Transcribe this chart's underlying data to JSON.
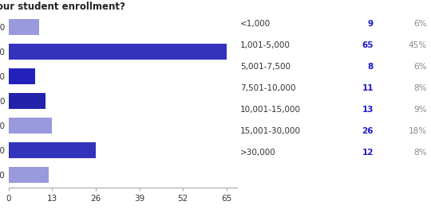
{
  "title": "How large is your student enrollment?",
  "categories": [
    "<1,000",
    "1,001-5,000",
    "5,001-7,500",
    "7,501-10,000",
    "10,001-15,000",
    "15,001-30,000",
    ">30,000"
  ],
  "values": [
    9,
    65,
    8,
    11,
    13,
    26,
    12
  ],
  "bar_colors": [
    "#9999dd",
    "#3333bb",
    "#2222bb",
    "#2222aa",
    "#9999dd",
    "#3333bb",
    "#9999dd"
  ],
  "counts": [
    "9",
    "65",
    "8",
    "11",
    "13",
    "26",
    "12"
  ],
  "percents": [
    "6%",
    "45%",
    "6%",
    "8%",
    "9%",
    "18%",
    "8%"
  ],
  "xticks": [
    0,
    13,
    26,
    39,
    52,
    65
  ],
  "xlim": [
    0,
    68
  ],
  "title_fontsize": 8.5,
  "tick_fontsize": 7.5,
  "table_label_color": "#333333",
  "table_count_color": "#1a1acc",
  "table_pct_color": "#888888",
  "bg_color": "#ffffff"
}
